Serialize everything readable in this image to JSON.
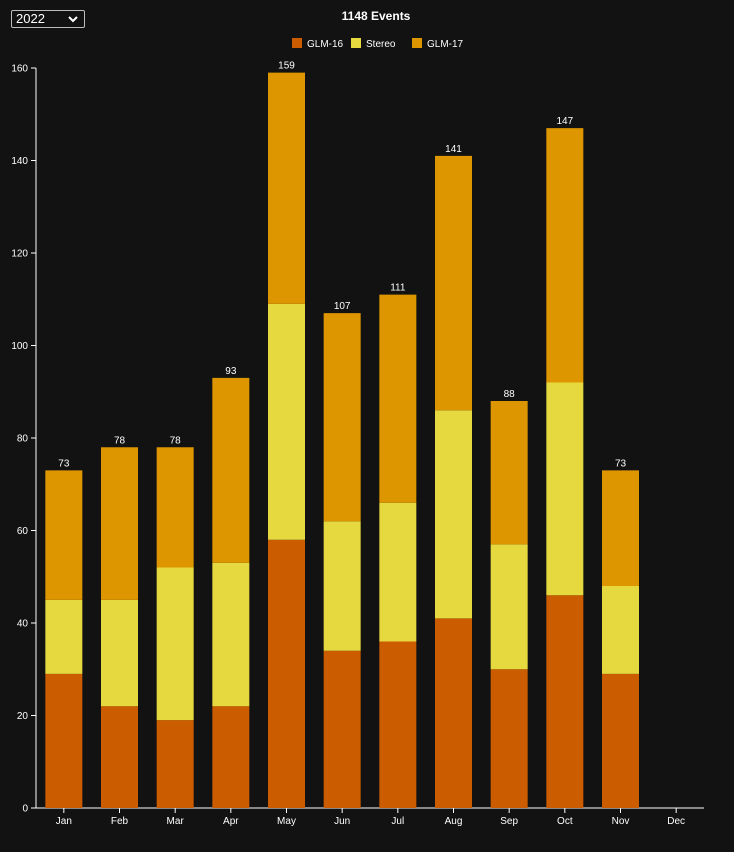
{
  "year_selector": {
    "value": "2022"
  },
  "chart_data": {
    "type": "bar",
    "stacked": true,
    "title": "1148 Events",
    "categories": [
      "Jan",
      "Feb",
      "Mar",
      "Apr",
      "May",
      "Jun",
      "Jul",
      "Aug",
      "Sep",
      "Oct",
      "Nov",
      "Dec"
    ],
    "series": [
      {
        "name": "GLM-16",
        "color": "#cc5c00",
        "values": [
          29,
          22,
          19,
          22,
          58,
          34,
          36,
          41,
          30,
          46,
          29,
          0
        ]
      },
      {
        "name": "Stereo",
        "color": "#e6d940",
        "values": [
          16,
          23,
          33,
          31,
          51,
          28,
          30,
          45,
          27,
          46,
          19,
          0
        ]
      },
      {
        "name": "GLM-17",
        "color": "#dd9500",
        "values": [
          28,
          33,
          26,
          40,
          50,
          45,
          45,
          55,
          31,
          55,
          25,
          0
        ]
      }
    ],
    "totals": [
      73,
      78,
      78,
      93,
      159,
      107,
      111,
      141,
      88,
      147,
      73,
      null
    ],
    "ylim": [
      0,
      160
    ],
    "yticks": [
      0,
      20,
      40,
      60,
      80,
      100,
      120,
      140,
      160
    ],
    "legend_position": "top-center",
    "grid": false,
    "xlabel": "",
    "ylabel": ""
  }
}
